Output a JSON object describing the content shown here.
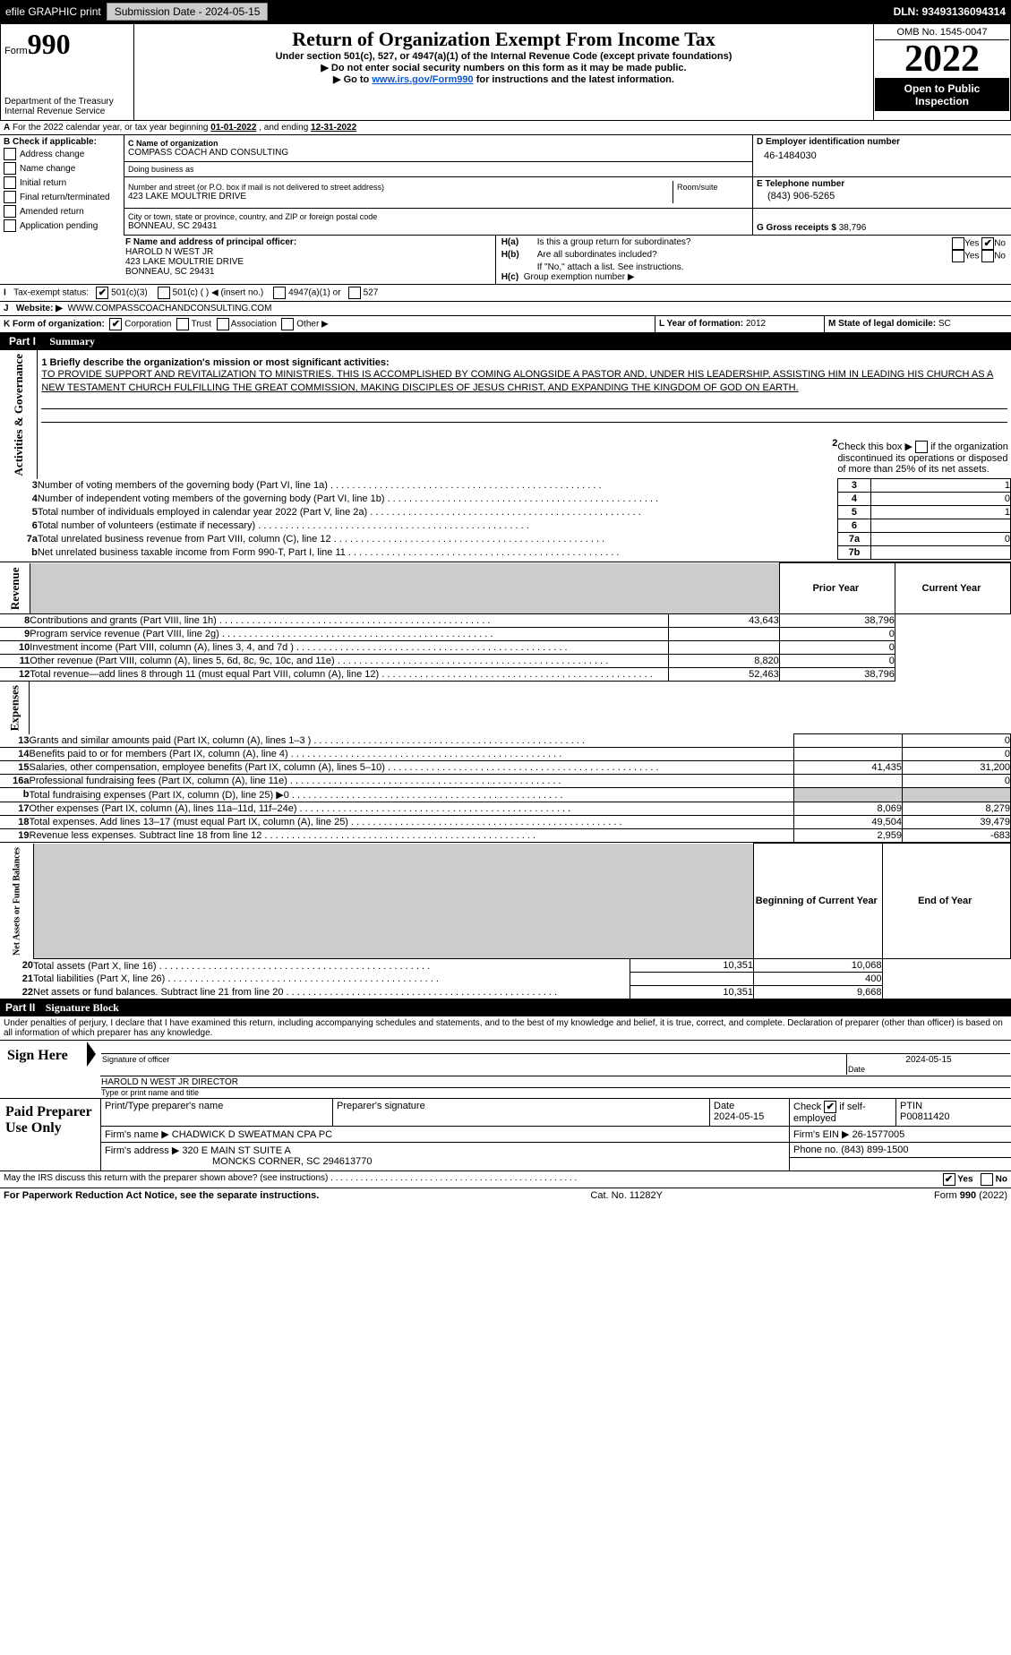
{
  "colors": {
    "link": "#0b57d0",
    "header_bg": "#000000",
    "shade": "#cccccc"
  },
  "topbar": {
    "efile": "efile GRAPHIC print",
    "submission_btn": "Submission Date - 2024-05-15",
    "dln": "DLN: 93493136094314"
  },
  "header": {
    "form_word": "Form",
    "form_num": "990",
    "title": "Return of Organization Exempt From Income Tax",
    "sub1": "Under section 501(c), 527, or 4947(a)(1) of the Internal Revenue Code (except private foundations)",
    "sub2": "▶ Do not enter social security numbers on this form as it may be made public.",
    "sub3_pre": "▶ Go to ",
    "sub3_link": "www.irs.gov/Form990",
    "sub3_post": " for instructions and the latest information.",
    "dept": "Department of the Treasury\nInternal Revenue Service",
    "omb": "OMB No. 1545-0047",
    "year": "2022",
    "open": "Open to Public Inspection"
  },
  "lineA": {
    "pre": "For the 2022 calendar year, or tax year beginning ",
    "begin": "01-01-2022",
    "mid": " , and ending ",
    "end": "12-31-2022"
  },
  "boxB": {
    "label": "B Check if applicable:",
    "items": [
      "Address change",
      "Name change",
      "Initial return",
      "Final return/terminated",
      "Amended return",
      "Application pending"
    ]
  },
  "boxC": {
    "name_label": "C Name of organization",
    "name": "COMPASS COACH AND CONSULTING",
    "dba_label": "Doing business as",
    "dba": "",
    "addr_label": "Number and street (or P.O. box if mail is not delivered to street address)",
    "room_label": "Room/suite",
    "addr": "423 LAKE MOULTRIE DRIVE",
    "city_label": "City or town, state or province, country, and ZIP or foreign postal code",
    "city": "BONNEAU, SC  29431"
  },
  "boxD": {
    "label": "D Employer identification number",
    "val": "46-1484030"
  },
  "boxE": {
    "label": "E Telephone number",
    "val": "(843) 906-5265"
  },
  "boxG": {
    "label": "G Gross receipts $",
    "val": "38,796"
  },
  "boxF": {
    "label": "F Name and address of principal officer:",
    "l1": "HAROLD N WEST JR",
    "l2": "423 LAKE MOULTRIE DRIVE",
    "l3": "BONNEAU, SC  29431"
  },
  "boxH": {
    "a": "Is this a group return for subordinates?",
    "b": "Are all subordinates included?",
    "note": "If \"No,\" attach a list. See instructions.",
    "c": "Group exemption number ▶",
    "yes": "Yes",
    "no": "No"
  },
  "rowI": {
    "label": "Tax-exempt status:",
    "o1": "501(c)(3)",
    "o2": "501(c) (   ) ◀ (insert no.)",
    "o3": "4947(a)(1) or",
    "o4": "527"
  },
  "rowJ": {
    "label": "Website: ▶",
    "val": "WWW.COMPASSCOACHANDCONSULTING.COM"
  },
  "rowK": {
    "label": "K Form of organization:",
    "o1": "Corporation",
    "o2": "Trust",
    "o3": "Association",
    "o4": "Other ▶"
  },
  "rowL": {
    "label": "L Year of formation:",
    "val": "2012"
  },
  "rowM": {
    "label": "M State of legal domicile:",
    "val": "SC"
  },
  "part1": {
    "label": "Part I",
    "title": "Summary"
  },
  "summary": {
    "q1_label": "1  Briefly describe the organization's mission or most significant activities:",
    "q1_text": "TO PROVIDE SUPPORT AND REVITALIZATION TO MINISTRIES. THIS IS ACCOMPLISHED BY COMING ALONGSIDE A PASTOR AND, UNDER HIS LEADERSHIP, ASSISTING HIM IN LEADING HIS CHURCH AS A NEW TESTAMENT CHURCH FULFILLING THE GREAT COMMISSION, MAKING DISCIPLES OF JESUS CHRIST, AND EXPANDING THE KINGDOM OF GOD ON EARTH.",
    "q2": "Check this box ▶        if the organization discontinued its operations or disposed of more than 25% of its net assets.",
    "lines": [
      {
        "n": "3",
        "t": "Number of voting members of the governing body (Part VI, line 1a)",
        "box": "3",
        "v": "1"
      },
      {
        "n": "4",
        "t": "Number of independent voting members of the governing body (Part VI, line 1b)",
        "box": "4",
        "v": "0"
      },
      {
        "n": "5",
        "t": "Total number of individuals employed in calendar year 2022 (Part V, line 2a)",
        "box": "5",
        "v": "1"
      },
      {
        "n": "6",
        "t": "Total number of volunteers (estimate if necessary)",
        "box": "6",
        "v": ""
      },
      {
        "n": "7a",
        "t": "Total unrelated business revenue from Part VIII, column (C), line 12",
        "box": "7a",
        "v": "0"
      },
      {
        "n": "b",
        "nlabel": "",
        "t": "Net unrelated business taxable income from Form 990-T, Part I, line 11",
        "box": "7b",
        "v": ""
      }
    ],
    "col_prior": "Prior Year",
    "col_curr": "Current Year",
    "revenue": [
      {
        "n": "8",
        "t": "Contributions and grants (Part VIII, line 1h)",
        "p": "43,643",
        "c": "38,796"
      },
      {
        "n": "9",
        "t": "Program service revenue (Part VIII, line 2g)",
        "p": "",
        "c": "0"
      },
      {
        "n": "10",
        "t": "Investment income (Part VIII, column (A), lines 3, 4, and 7d )",
        "p": "",
        "c": "0"
      },
      {
        "n": "11",
        "t": "Other revenue (Part VIII, column (A), lines 5, 6d, 8c, 9c, 10c, and 11e)",
        "p": "8,820",
        "c": "0"
      },
      {
        "n": "12",
        "t": "Total revenue—add lines 8 through 11 (must equal Part VIII, column (A), line 12)",
        "p": "52,463",
        "c": "38,796"
      }
    ],
    "expenses": [
      {
        "n": "13",
        "t": "Grants and similar amounts paid (Part IX, column (A), lines 1–3 )",
        "p": "",
        "c": "0"
      },
      {
        "n": "14",
        "t": "Benefits paid to or for members (Part IX, column (A), line 4)",
        "p": "",
        "c": "0"
      },
      {
        "n": "15",
        "t": "Salaries, other compensation, employee benefits (Part IX, column (A), lines 5–10)",
        "p": "41,435",
        "c": "31,200"
      },
      {
        "n": "16a",
        "t": "Professional fundraising fees (Part IX, column (A), line 11e)",
        "p": "",
        "c": "0"
      },
      {
        "n": "b",
        "t": "Total fundraising expenses (Part IX, column (D), line 25) ▶0",
        "p": null,
        "c": null
      },
      {
        "n": "17",
        "t": "Other expenses (Part IX, column (A), lines 11a–11d, 11f–24e)",
        "p": "8,069",
        "c": "8,279"
      },
      {
        "n": "18",
        "t": "Total expenses. Add lines 13–17 (must equal Part IX, column (A), line 25)",
        "p": "49,504",
        "c": "39,479"
      },
      {
        "n": "19",
        "t": "Revenue less expenses. Subtract line 18 from line 12",
        "p": "2,959",
        "c": "-683"
      }
    ],
    "net_col1": "Beginning of Current Year",
    "net_col2": "End of Year",
    "net": [
      {
        "n": "20",
        "t": "Total assets (Part X, line 16)",
        "p": "10,351",
        "c": "10,068"
      },
      {
        "n": "21",
        "t": "Total liabilities (Part X, line 26)",
        "p": "",
        "c": "400"
      },
      {
        "n": "22",
        "t": "Net assets or fund balances. Subtract line 21 from line 20",
        "p": "10,351",
        "c": "9,668"
      }
    ],
    "vert_ag": "Activities & Governance",
    "vert_rev": "Revenue",
    "vert_exp": "Expenses",
    "vert_net": "Net Assets or Fund Balances"
  },
  "part2": {
    "label": "Part II",
    "title": "Signature Block",
    "decl": "Under penalties of perjury, I declare that I have examined this return, including accompanying schedules and statements, and to the best of my knowledge and belief, it is true, correct, and complete. Declaration of preparer (other than officer) is based on all information of which preparer has any knowledge.",
    "sign_here": "Sign Here",
    "sig_officer": "Signature of officer",
    "date": "Date",
    "date_val": "2024-05-15",
    "name_title": "HAROLD N WEST JR  DIRECTOR",
    "type_name": "Type or print name and title",
    "paid": "Paid Preparer Use Only",
    "prep_name_label": "Print/Type preparer's name",
    "prep_sig_label": "Preparer's signature",
    "prep_date_label": "Date",
    "prep_date": "2024-05-15",
    "check_if": "Check         if self-employed",
    "ptin_label": "PTIN",
    "ptin": "P00811420",
    "firm_name_label": "Firm's name      ▶",
    "firm_name": "CHADWICK D SWEATMAN CPA PC",
    "firm_ein_label": "Firm's EIN ▶",
    "firm_ein": "26-1577005",
    "firm_addr_label": "Firm's address ▶",
    "firm_addr1": "320 E MAIN ST SUITE A",
    "firm_addr2": "MONCKS CORNER, SC  294613770",
    "phone_label": "Phone no.",
    "phone": "(843) 899-1500",
    "discuss": "May the IRS discuss this return with the preparer shown above? (see instructions)",
    "yes": "Yes",
    "no": "No"
  },
  "footer": {
    "left": "For Paperwork Reduction Act Notice, see the separate instructions.",
    "mid": "Cat. No. 11282Y",
    "right_pre": "Form ",
    "right_form": "990",
    "right_post": " (2022)"
  }
}
